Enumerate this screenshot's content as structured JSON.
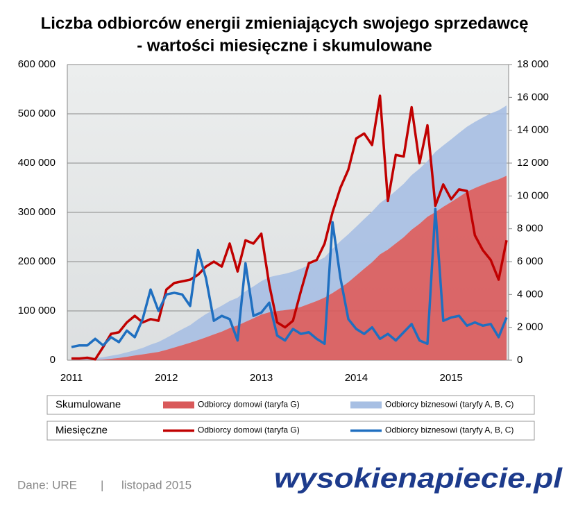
{
  "chart_data": {
    "type": "combo",
    "title": [
      "Liczba odbiorców energii zmieniających swojego sprzedawcę",
      "- wartości miesięczne i skumulowane"
    ],
    "categories": [
      "2011",
      null,
      null,
      null,
      null,
      null,
      null,
      null,
      null,
      null,
      null,
      null,
      "2012",
      null,
      null,
      null,
      null,
      null,
      null,
      null,
      null,
      null,
      null,
      null,
      "2013",
      null,
      null,
      null,
      null,
      null,
      null,
      null,
      null,
      null,
      null,
      null,
      "2014",
      null,
      null,
      null,
      null,
      null,
      null,
      null,
      null,
      null,
      null,
      null,
      "2015",
      null,
      null,
      null,
      null,
      null,
      null,
      null
    ],
    "legend_groups": [
      "Skumulowane",
      "Miesięczne"
    ],
    "series": [
      {
        "name": "Odbiorcy domowi (taryfa G)",
        "kind": "area",
        "group": 0,
        "color": "#d9595a",
        "axis": "y",
        "values": [
          100,
          200,
          350,
          400,
          1200,
          2800,
          4500,
          6800,
          9500,
          11800,
          14300,
          16700,
          21000,
          25700,
          30500,
          35400,
          40600,
          46300,
          52300,
          58000,
          65100,
          70500,
          77800,
          84900,
          92600,
          97200,
          99500,
          101500,
          103900,
          108100,
          114000,
          120100,
          127200,
          136200,
          146700,
          158300,
          171800,
          185600,
          198700,
          214800,
          224500,
          237000,
          249400,
          264800,
          276800,
          291100,
          300500,
          311200,
          321000,
          331400,
          341700,
          349300,
          356000,
          362100,
          367000,
          374300
        ]
      },
      {
        "name": "Odbiorcy biznesowi (taryfy A, B, C)",
        "kind": "area",
        "group": 0,
        "color": "#a7bfe3",
        "axis": "y",
        "stacked": true,
        "values": [
          800,
          1700,
          2600,
          3900,
          4800,
          6200,
          7300,
          9100,
          10500,
          13000,
          17300,
          20300,
          24300,
          28400,
          32400,
          35700,
          42400,
          47400,
          49800,
          52500,
          55000,
          56200,
          62100,
          64800,
          67700,
          71200,
          72700,
          73900,
          75800,
          77400,
          79100,
          80400,
          81400,
          89800,
          94800,
          97300,
          99200,
          100800,
          102800,
          104100,
          105700,
          106900,
          108600,
          110800,
          112000,
          113000,
          122200,
          124600,
          127200,
          129900,
          132000,
          134300,
          136400,
          138600,
          140000,
          142600
        ]
      },
      {
        "name": "Odbiorcy domowi (taryfa G)",
        "kind": "line",
        "group": 1,
        "color": "#c00000",
        "axis": "y2",
        "values": [
          100,
          100,
          150,
          50,
          800,
          1600,
          1700,
          2300,
          2700,
          2300,
          2500,
          2400,
          4300,
          4700,
          4800,
          4900,
          5200,
          5700,
          6000,
          5700,
          7100,
          5400,
          7300,
          7100,
          7700,
          4600,
          2300,
          2000,
          2400,
          4200,
          5900,
          6100,
          7100,
          9000,
          10500,
          11600,
          13500,
          13800,
          13100,
          16100,
          9700,
          12500,
          12400,
          15400,
          12000,
          14300,
          9400,
          10700,
          9800,
          10400,
          10300,
          7600,
          6700,
          6100,
          4900,
          7300
        ]
      },
      {
        "name": "Odbiorcy biznesowi (taryfy A, B, C)",
        "kind": "line",
        "group": 1,
        "color": "#1f6fc0",
        "axis": "y2",
        "values": [
          800,
          900,
          900,
          1300,
          900,
          1400,
          1100,
          1800,
          1400,
          2500,
          4300,
          3000,
          4000,
          4100,
          4000,
          3300,
          6700,
          5000,
          2400,
          2700,
          2500,
          1200,
          5900,
          2700,
          2900,
          3500,
          1500,
          1200,
          1900,
          1600,
          1700,
          1300,
          1000,
          8400,
          5000,
          2500,
          1900,
          1600,
          2000,
          1300,
          1600,
          1200,
          1700,
          2200,
          1200,
          1000,
          9200,
          2400,
          2600,
          2700,
          2100,
          2300,
          2100,
          2200,
          1400,
          2600
        ]
      }
    ],
    "ylim": [
      0,
      600000
    ],
    "yticks": [
      0,
      {
        "value": 100000,
        "label": "100 000"
      },
      {
        "value": 200000,
        "label": "200 000"
      },
      {
        "value": 300000,
        "label": "300 000"
      },
      {
        "value": 400000,
        "label": "400 000"
      },
      {
        "value": 500000,
        "label": "500 000"
      },
      {
        "value": 600000,
        "label": "600 000"
      }
    ],
    "y2lim": [
      0,
      18000
    ],
    "y2ticks": [
      0,
      {
        "value": 2000,
        "label": "2 000"
      },
      {
        "value": 4000,
        "label": "4 000"
      },
      {
        "value": 6000,
        "label": "6 000"
      },
      {
        "value": 8000,
        "label": "8 000"
      },
      {
        "value": 10000,
        "label": "10 000"
      },
      {
        "value": 12000,
        "label": "12 000"
      },
      {
        "value": 14000,
        "label": "14 000"
      },
      {
        "value": 16000,
        "label": "16 000"
      },
      {
        "value": 18000,
        "label": "18 000"
      }
    ],
    "grid": true
  },
  "footer": {
    "source": "Dane: URE",
    "separator": "|",
    "date": "listopad 2015",
    "logo": "wysokienapiecie.pl"
  }
}
